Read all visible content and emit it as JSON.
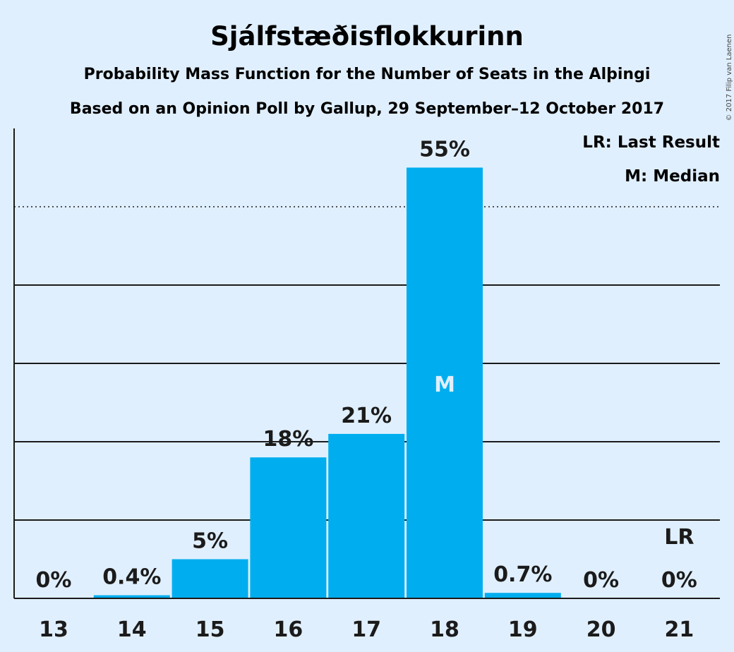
{
  "chart_data": {
    "type": "bar",
    "title": "Sjálfstæðisflokkurinn",
    "subtitle": "Probability Mass Function for the Number of Seats in the Alþingi",
    "subtitle2": "Based on an Opinion Poll by Gallup, 29 September–12 October 2017",
    "categories": [
      "13",
      "14",
      "15",
      "16",
      "17",
      "18",
      "19",
      "20",
      "21"
    ],
    "values": [
      0,
      0.4,
      5,
      18,
      21,
      55,
      0.7,
      0,
      0
    ],
    "value_labels": [
      "0%",
      "0.4%",
      "5%",
      "18%",
      "21%",
      "55%",
      "0.7%",
      "0%",
      "0%"
    ],
    "ylim": [
      0,
      60
    ],
    "grid": {
      "solid": [
        10,
        40
      ],
      "dotted": [
        10,
        30,
        50
      ]
    },
    "median_index": 5,
    "median_marker": "M",
    "last_result_index": 8,
    "last_result_marker": "LR",
    "legend": [
      "LR: Last Result",
      "M: Median"
    ],
    "legend_position": "top-right",
    "copyright": "© 2017 Filip van Laenen",
    "colors": {
      "bar": "#00aeef",
      "background": "#e0effe",
      "text": "#1b1b1b",
      "median_text": "#e0effe"
    }
  }
}
